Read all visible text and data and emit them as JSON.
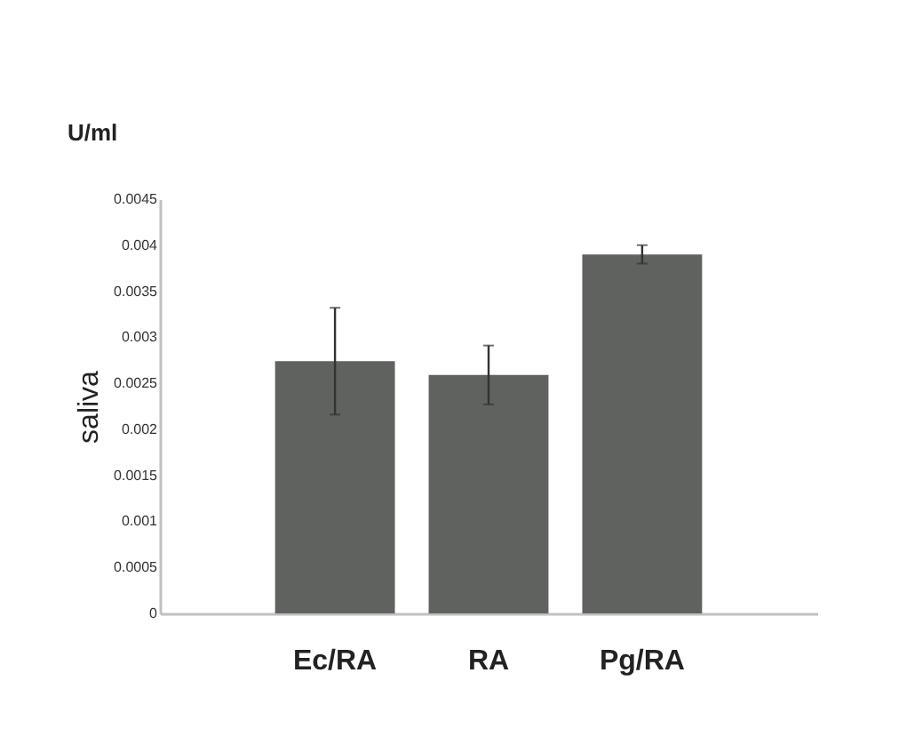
{
  "chart_data": {
    "type": "bar",
    "ylabel": "saliva",
    "annotations": [
      "U/ml"
    ],
    "categories": [
      "Ec/RA",
      "RA",
      "Pg/RA"
    ],
    "values": [
      0.00274,
      0.00259,
      0.0039
    ],
    "errors": [
      0.00058,
      0.00032,
      0.0001
    ],
    "color": "#606260",
    "ylim": [
      0,
      0.0045
    ],
    "yticks": [
      0,
      0.0005,
      0.001,
      0.0015,
      0.002,
      0.0025,
      0.003,
      0.0035,
      0.004,
      0.0045
    ],
    "grid": false
  }
}
